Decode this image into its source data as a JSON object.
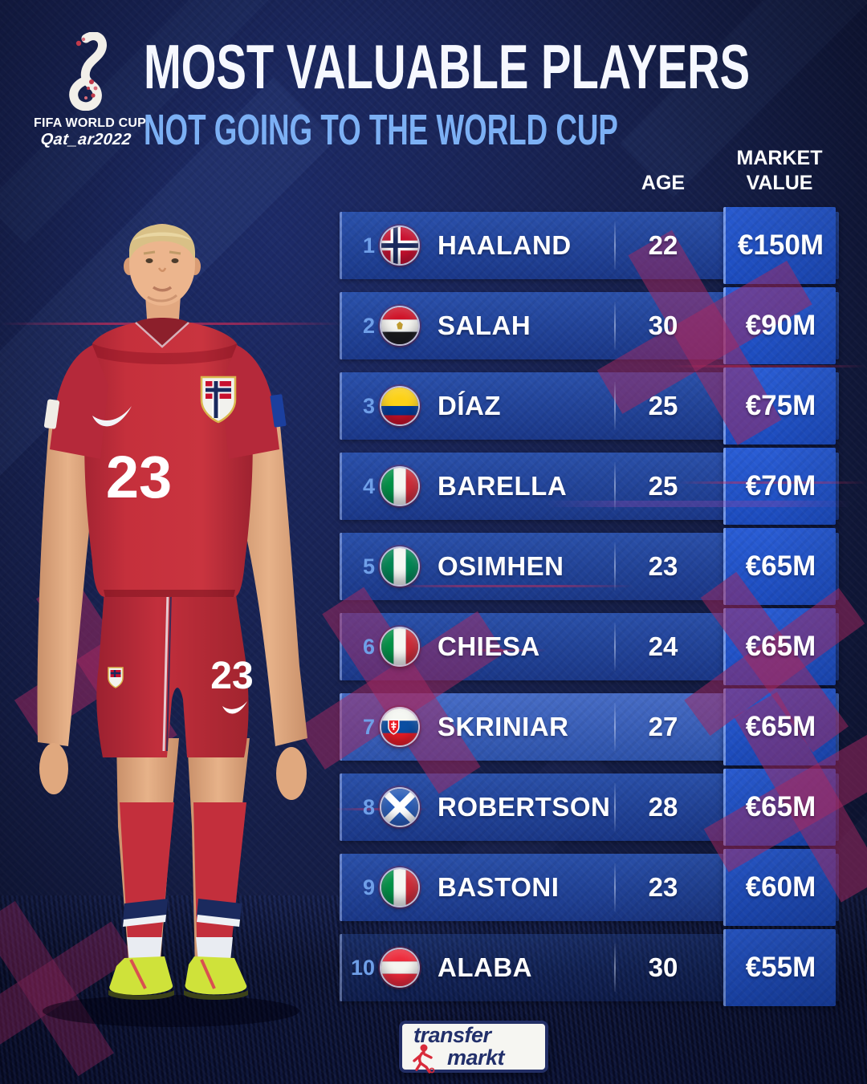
{
  "fifa_logo": {
    "line1": "FIFA WORLD CUP",
    "line2": "Qat_ar2022"
  },
  "header": {
    "title": "MOST VALUABLE PLAYERS",
    "subtitle": "NOT GOING TO THE WORLD CUP"
  },
  "table": {
    "age_header": "AGE",
    "value_header": "MARKET VALUE",
    "rows": [
      {
        "rank": "1",
        "player": "HAALAND",
        "flag": "norway",
        "country": "Norway",
        "age": "22",
        "value": "€150M"
      },
      {
        "rank": "2",
        "player": "SALAH",
        "flag": "egypt",
        "country": "Egypt",
        "age": "30",
        "value": "€90M"
      },
      {
        "rank": "3",
        "player": "DÍAZ",
        "flag": "colombia",
        "country": "Colombia",
        "age": "25",
        "value": "€75M"
      },
      {
        "rank": "4",
        "player": "BARELLA",
        "flag": "italy",
        "country": "Italy",
        "age": "25",
        "value": "€70M"
      },
      {
        "rank": "5",
        "player": "OSIMHEN",
        "flag": "nigeria",
        "country": "Nigeria",
        "age": "23",
        "value": "€65M"
      },
      {
        "rank": "6",
        "player": "CHIESA",
        "flag": "italy",
        "country": "Italy",
        "age": "24",
        "value": "€65M"
      },
      {
        "rank": "7",
        "player": "SKRINIAR",
        "flag": "slovakia",
        "country": "Slovakia",
        "age": "27",
        "value": "€65M"
      },
      {
        "rank": "8",
        "player": "ROBERTSON",
        "flag": "scotland",
        "country": "Scotland",
        "age": "28",
        "value": "€65M"
      },
      {
        "rank": "9",
        "player": "BASTONI",
        "flag": "italy",
        "country": "Italy",
        "age": "23",
        "value": "€60M"
      },
      {
        "rank": "10",
        "player": "ALABA",
        "flag": "austria",
        "country": "Austria",
        "age": "30",
        "value": "€55M"
      }
    ]
  },
  "player_image": {
    "shirt_number": "23",
    "team": "Norway"
  },
  "footer_logo": {
    "line1": "transfer",
    "line2": "markt"
  },
  "colors": {
    "background": "#16204f",
    "row_bar": "#2b54b2",
    "value_cell": "#2155cb",
    "subtitle": "#7cb0f4",
    "rank": "#6f9fe8",
    "x_mark": "#8e3560",
    "jersey_red": "#c5303c"
  }
}
